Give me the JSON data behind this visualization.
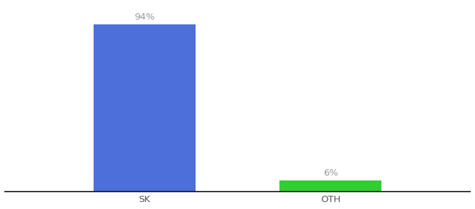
{
  "categories": [
    "SK",
    "OTH"
  ],
  "values": [
    94,
    6
  ],
  "bar_colors": [
    "#4d6fd9",
    "#33cc33"
  ],
  "ylabel": "",
  "xlabel": "",
  "ylim": [
    0,
    105
  ],
  "bar_labels": [
    "94%",
    "6%"
  ],
  "label_fontsize": 9.5,
  "tick_fontsize": 9.5,
  "background_color": "#ffffff",
  "bar_positions": [
    0.3,
    0.7
  ],
  "bar_width": 0.22,
  "xlim": [
    0,
    1
  ]
}
